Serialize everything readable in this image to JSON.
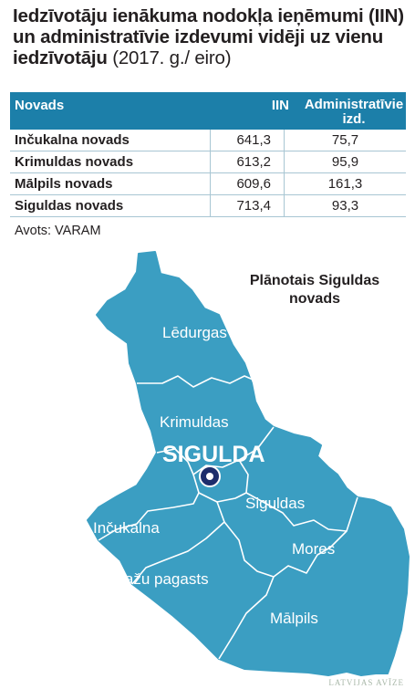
{
  "title": {
    "text": "Iedzīvotāju ienākuma nodokļa ieņēmumi (IIN) un administratīvie izdevumi  vidēji uz vienu iedzīvotāju",
    "suffix": "(2017. g./ eiro)"
  },
  "table": {
    "headers": [
      "Novads",
      "IIN",
      "Administratīvie izd."
    ],
    "rows": [
      {
        "novads": "Inčukalna novads",
        "iin": "641,3",
        "admin": "75,7"
      },
      {
        "novads": "Krimuldas novads",
        "iin": "613,2",
        "admin": "95,9"
      },
      {
        "novads": "Mālpils novads",
        "iin": "609,6",
        "admin": "161,3"
      },
      {
        "novads": "Siguldas novads",
        "iin": "713,4",
        "admin": "93,3"
      }
    ]
  },
  "source": "Avots: VARAM",
  "map": {
    "heading": "Plānotais Siguldas novads",
    "fill_color": "#3b9ec2",
    "border_color": "#ffffff",
    "center_label": "SIGULDA",
    "regions": [
      "Lēdurgas",
      "Krimuldas",
      "Siguldas",
      "Inčukalna",
      "Mores",
      "Allažu pagasts",
      "Mālpils"
    ],
    "marker_icon": "city-marker-icon"
  },
  "credit": "LATVIJAS AVĪZE"
}
